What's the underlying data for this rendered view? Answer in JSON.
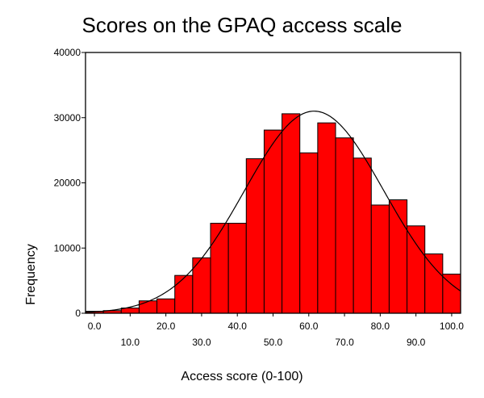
{
  "chart_data": {
    "type": "bar",
    "subtype": "histogram",
    "title": "Scores on the GPAQ access scale",
    "xlabel": "Access score (0-100)",
    "ylabel": "Frequency",
    "xlim": [
      -2.5,
      102.5
    ],
    "ylim": [
      0,
      40000
    ],
    "bin_width": 5,
    "bin_centers": [
      0,
      5,
      10,
      15,
      20,
      25,
      30,
      35,
      40,
      45,
      50,
      55,
      60,
      65,
      70,
      75,
      80,
      85,
      90,
      95,
      100
    ],
    "values": [
      300,
      400,
      800,
      1900,
      2200,
      5800,
      8500,
      13800,
      13800,
      23700,
      28100,
      30600,
      24600,
      29200,
      26900,
      23800,
      16600,
      17400,
      13400,
      9100,
      6000
    ],
    "normal_curve": {
      "mean": 61.5,
      "sd": 19.5,
      "peak": 31000
    },
    "x_ticks_upper": [
      "0.0",
      "20.0",
      "40.0",
      "60.0",
      "80.0",
      "100.0"
    ],
    "x_ticks_upper_values": [
      0,
      20,
      40,
      60,
      80,
      100
    ],
    "x_ticks_lower": [
      "10.0",
      "30.0",
      "50.0",
      "70.0",
      "90.0"
    ],
    "x_ticks_lower_values": [
      10,
      30,
      50,
      70,
      90
    ],
    "y_ticks": [
      "0",
      "10000",
      "20000",
      "30000",
      "40000"
    ],
    "y_tick_values": [
      0,
      10000,
      20000,
      30000,
      40000
    ],
    "bar_color": "#ff0000",
    "bar_edge_color": "#000000",
    "curve_color": "#000000",
    "grid": false,
    "legend": "none"
  }
}
